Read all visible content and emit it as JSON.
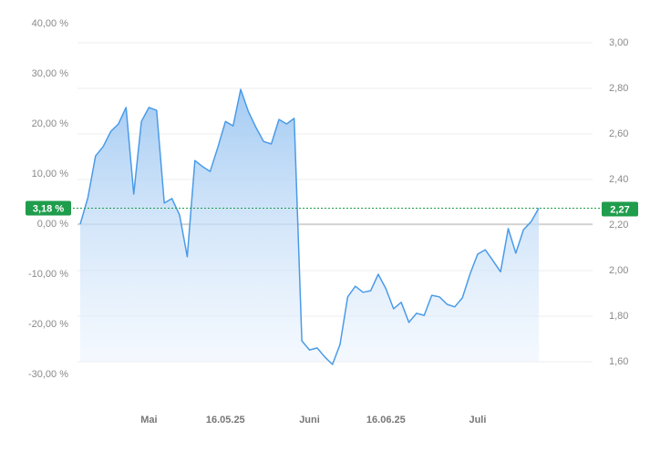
{
  "chart_data": {
    "type": "area",
    "series": [
      {
        "color": "#4a9be8",
        "values": [
          0,
          5.3,
          13.6,
          15.5,
          18.5,
          20.0,
          23.3,
          6.0,
          20.5,
          23.3,
          22.7,
          4.2,
          5.1,
          1.8,
          -6.5,
          12.7,
          11.5,
          10.5,
          15.3,
          20.5,
          19.6,
          26.9,
          22.5,
          19.3,
          16.5,
          16.0,
          20.9,
          20.0,
          21.1,
          -23.3,
          -25.1,
          -24.7,
          -26.5,
          -28.0,
          -24.0,
          -14.5,
          -12.4,
          -13.6,
          -13.3,
          -10.0,
          -12.9,
          -16.9,
          -15.6,
          -19.6,
          -17.8,
          -18.2,
          -14.2,
          -14.5,
          -16.0,
          -16.5,
          -14.7,
          -10.0,
          -6.0,
          -5.1,
          -7.3,
          -9.5,
          -0.9,
          -5.8,
          -1.1,
          0.5,
          3.18
        ]
      }
    ],
    "xlim": [
      0,
      60
    ],
    "xticks": [
      {
        "value": 9,
        "label": "Mai"
      },
      {
        "value": 19,
        "label": "16.05.25"
      },
      {
        "value": 30,
        "label": "Juni"
      },
      {
        "value": 40,
        "label": "16.06.25"
      },
      {
        "value": 52,
        "label": "Juli"
      }
    ],
    "ylim": [
      -30,
      40
    ],
    "yticks": [
      {
        "value": -30,
        "label": "-30,00 %"
      },
      {
        "value": -20,
        "label": "-20,00 %"
      },
      {
        "value": -10,
        "label": "-10,00 %"
      },
      {
        "value": 0,
        "label": "0,00 %"
      },
      {
        "value": 10,
        "label": "10,00 %"
      },
      {
        "value": 20,
        "label": "20,00 %"
      },
      {
        "value": 30,
        "label": "30,00 %"
      },
      {
        "value": 40,
        "label": "40,00 %"
      }
    ],
    "y2lim": [
      1.544,
      3.084
    ],
    "y2ticks": [
      {
        "value": 1.6,
        "label": "1,60"
      },
      {
        "value": 1.8,
        "label": "1,80"
      },
      {
        "value": 2.0,
        "label": "2,00"
      },
      {
        "value": 2.2,
        "label": "2,20"
      },
      {
        "value": 2.4,
        "label": "2,40"
      },
      {
        "value": 2.6,
        "label": "2,60"
      },
      {
        "value": 2.8,
        "label": "2,80"
      },
      {
        "value": 3.0,
        "label": "3,00"
      }
    ],
    "current": {
      "value": 3.18,
      "label": "3,18 %"
    },
    "current_y2": {
      "value": 2.27,
      "label": "2,27"
    },
    "badge_color": "#1f9d4c",
    "grid": true
  }
}
